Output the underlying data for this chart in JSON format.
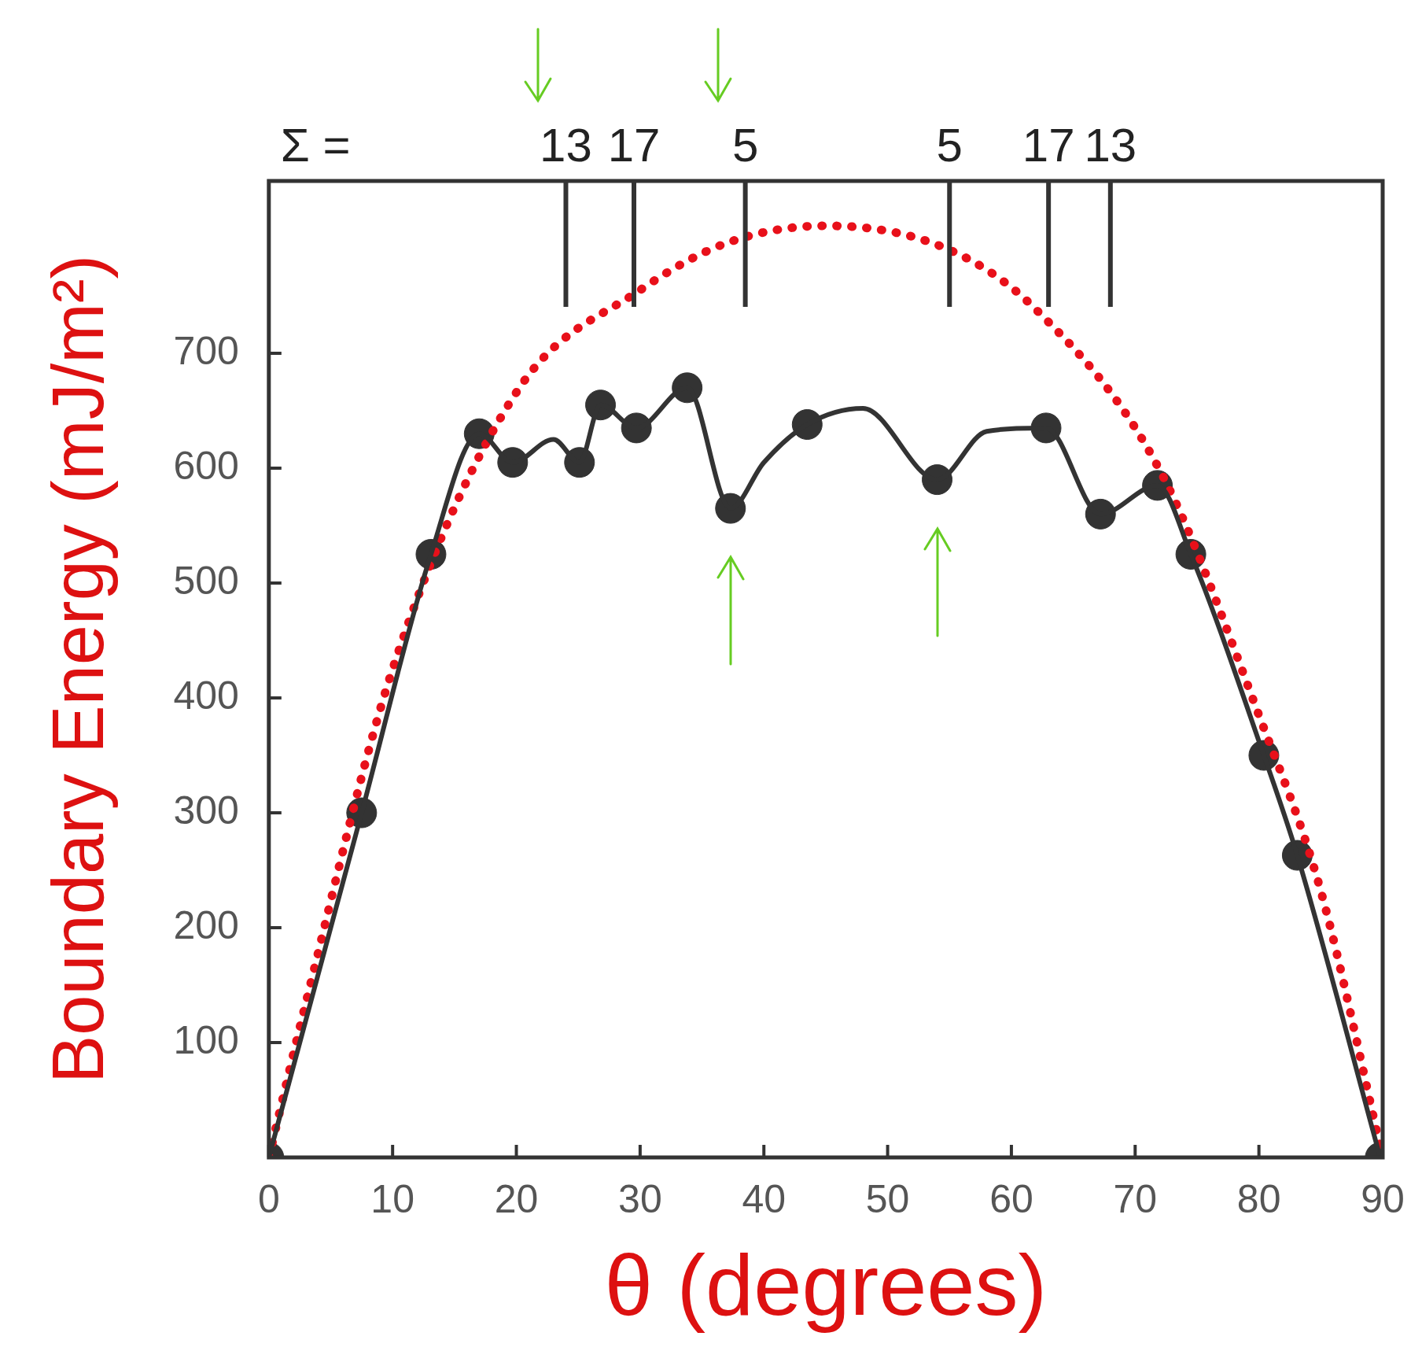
{
  "chart_data": {
    "type": "line",
    "xlabel": "θ (degrees)",
    "ylabel": "Boundary Energy (mJ/m²)",
    "annotations": [
      "Σ =",
      "13",
      "17",
      "5",
      "5",
      "17",
      "13"
    ],
    "xlim": [
      0,
      90
    ],
    "xticks": [
      0,
      10,
      20,
      30,
      40,
      50,
      60,
      70,
      80,
      90
    ],
    "ylim": [
      0,
      850
    ],
    "yticks": [
      100,
      200,
      300,
      400,
      500,
      600,
      700
    ],
    "ref_lines": [
      {
        "axis": "x",
        "value": 24
      },
      {
        "axis": "x",
        "value": 29.5
      },
      {
        "axis": "x",
        "value": 38.5
      },
      {
        "axis": "x",
        "value": 55
      },
      {
        "axis": "x",
        "value": 63
      },
      {
        "axis": "x",
        "value": 68
      }
    ],
    "series": [
      {
        "color": "#333333",
        "marker": "none",
        "line_style": "solid",
        "x": [
          0,
          7.5,
          13.1,
          17,
          19.7,
          23,
          25.1,
          26.8,
          29.7,
          33.8,
          37.3,
          40,
          43.5,
          48,
          54,
          58,
          62.8,
          67.2,
          71.8,
          74.5,
          80.4,
          83.1,
          89.8
        ],
        "values": [
          0,
          300,
          525,
          630,
          605,
          625,
          605,
          655,
          635,
          670,
          565,
          605,
          638,
          652,
          590,
          632,
          635,
          560,
          585,
          525,
          350,
          263,
          0
        ]
      },
      {
        "type": "scatter",
        "color": "#333333",
        "marker": "circle",
        "x": [
          0,
          7.5,
          13.1,
          17,
          19.7,
          25.1,
          26.8,
          29.7,
          33.8,
          37.3,
          43.5,
          54,
          62.8,
          67.2,
          71.8,
          74.5,
          80.4,
          83.1,
          89.8
        ],
        "values": [
          0,
          300,
          525,
          630,
          605,
          605,
          655,
          635,
          670,
          565,
          638,
          590,
          635,
          560,
          585,
          525,
          350,
          263,
          0
        ]
      },
      {
        "type": "line",
        "color": "#e8101a",
        "marker": "none",
        "line_style": "dotted",
        "x": [
          0,
          3,
          10,
          20,
          30,
          37,
          45,
          55,
          62,
          72,
          80,
          85,
          90
        ],
        "values": [
          0,
          135,
          425,
          666,
          755,
          796,
          811,
          790,
          738,
          598,
          385,
          232,
          0
        ]
      }
    ]
  }
}
